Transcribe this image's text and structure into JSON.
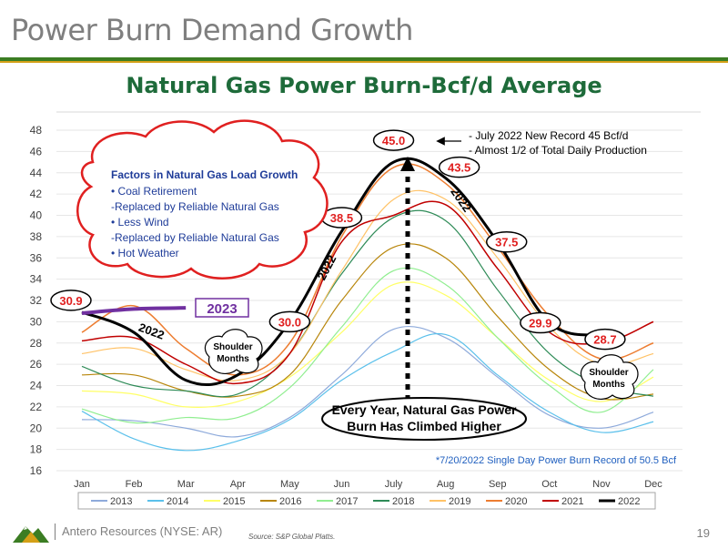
{
  "slide": {
    "title": "Power Burn Demand Growth",
    "company": "Antero Resources (NYSE: AR)",
    "source": "Source:  S&P Global Platts.",
    "page_number": "19"
  },
  "colors": {
    "title_green": "#1e6b3a",
    "brand_green": "#3b7d23",
    "callout_red": "#e02020",
    "box_blue": "#7030a0"
  },
  "chart_data": {
    "type": "line",
    "title": "Natural Gas Power Burn-Bcf/d Average",
    "categories": [
      "Jan",
      "Feb",
      "Mar",
      "Apr",
      "May",
      "Jun",
      "July",
      "Aug",
      "Sep",
      "Oct",
      "Nov",
      "Dec"
    ],
    "ylim": [
      16,
      48
    ],
    "yticks": [
      16,
      18,
      20,
      22,
      24,
      26,
      28,
      30,
      32,
      34,
      36,
      38,
      40,
      42,
      44,
      46,
      48
    ],
    "grid": true,
    "legend_position": "bottom",
    "series": [
      {
        "name": "2013",
        "color": "#8eaadb",
        "width": 1.2,
        "values": [
          20.8,
          20.7,
          20.0,
          19.2,
          21.0,
          25.0,
          29.3,
          28.5,
          24.8,
          21.2,
          20.0,
          21.5
        ]
      },
      {
        "name": "2014",
        "color": "#5bc0eb",
        "width": 1.2,
        "values": [
          21.6,
          19.0,
          17.9,
          18.8,
          20.8,
          24.5,
          27.2,
          28.8,
          25.0,
          21.5,
          19.6,
          20.6
        ]
      },
      {
        "name": "2015",
        "color": "#ffff66",
        "width": 1.2,
        "values": [
          23.5,
          23.2,
          22.0,
          22.5,
          24.8,
          29.0,
          33.5,
          32.5,
          28.5,
          24.5,
          22.5,
          24.8
        ]
      },
      {
        "name": "2016",
        "color": "#b8860b",
        "width": 1.2,
        "values": [
          25.0,
          25.0,
          23.5,
          23.0,
          25.0,
          32.0,
          37.0,
          36.0,
          30.5,
          25.5,
          22.8,
          23.2
        ]
      },
      {
        "name": "2017",
        "color": "#90ee90",
        "width": 1.2,
        "values": [
          21.8,
          20.5,
          21.0,
          21.0,
          23.8,
          29.5,
          34.8,
          33.5,
          28.5,
          24.0,
          21.5,
          25.5
        ]
      },
      {
        "name": "2018",
        "color": "#2e8b57",
        "width": 1.2,
        "values": [
          25.8,
          24.0,
          23.5,
          23.2,
          27.0,
          34.5,
          39.8,
          39.5,
          33.0,
          27.0,
          24.0,
          23.0
        ]
      },
      {
        "name": "2019",
        "color": "#ffc266",
        "width": 1.2,
        "values": [
          27.0,
          27.5,
          25.5,
          24.5,
          27.0,
          34.8,
          41.5,
          41.5,
          36.0,
          29.5,
          26.0,
          27.0
        ]
      },
      {
        "name": "2020",
        "color": "#ed7d31",
        "width": 1.5,
        "values": [
          29.0,
          31.5,
          27.5,
          25.0,
          28.0,
          38.0,
          44.5,
          43.0,
          37.0,
          30.5,
          26.5,
          28.0
        ]
      },
      {
        "name": "2021",
        "color": "#c00000",
        "width": 1.5,
        "values": [
          28.2,
          28.5,
          26.0,
          24.2,
          27.0,
          37.5,
          40.0,
          41.0,
          35.0,
          29.0,
          28.0,
          30.0
        ]
      },
      {
        "name": "2022",
        "color": "#000000",
        "width": 3,
        "values": [
          30.9,
          29.0,
          24.5,
          25.0,
          30.0,
          38.5,
          45.0,
          43.5,
          37.5,
          29.9,
          28.7,
          null
        ]
      }
    ],
    "data_labels": [
      {
        "text": "30.9",
        "x": "Jan",
        "y": 30.9
      },
      {
        "text": "30.0",
        "x": "May",
        "y": 30.0
      },
      {
        "text": "38.5",
        "x": "Jun",
        "y": 38.5
      },
      {
        "text": "45.0",
        "x": "July",
        "y": 45.0
      },
      {
        "text": "43.5",
        "x": "Aug",
        "y": 43.5
      },
      {
        "text": "37.5",
        "x": "Sep",
        "y": 37.5
      },
      {
        "text": "29.9",
        "x": "Oct",
        "y": 29.9
      },
      {
        "text": "28.7",
        "x": "Nov",
        "y": 28.7
      }
    ],
    "series_2023": {
      "label": "2023",
      "color": "#7030a0",
      "values": [
        30.8,
        31.2,
        31.3
      ]
    },
    "annotations": {
      "record_note_1": "- July 2022 New Record 45 Bcf/d",
      "record_note_2": "- Almost 1/2 of Total Daily Production",
      "cloud_title": "Factors in Natural Gas Load Growth",
      "cloud_lines": [
        "• Coal Retirement",
        "  -Replaced by Reliable Natural Gas",
        "• Less Wind",
        "  -Replaced by Reliable Natural Gas",
        "• Hot Weather"
      ],
      "shoulder_1": [
        "Shoulder",
        "Months"
      ],
      "shoulder_2": [
        "Shoulder",
        "Months"
      ],
      "climb_note": [
        "Every Year, Natural Gas Power",
        "Burn Has Climbed Higher"
      ],
      "single_day_record": "*7/20/2022 Single Day Power Burn Record of 50.5 Bcf",
      "curve_label_2022": "2022"
    }
  }
}
